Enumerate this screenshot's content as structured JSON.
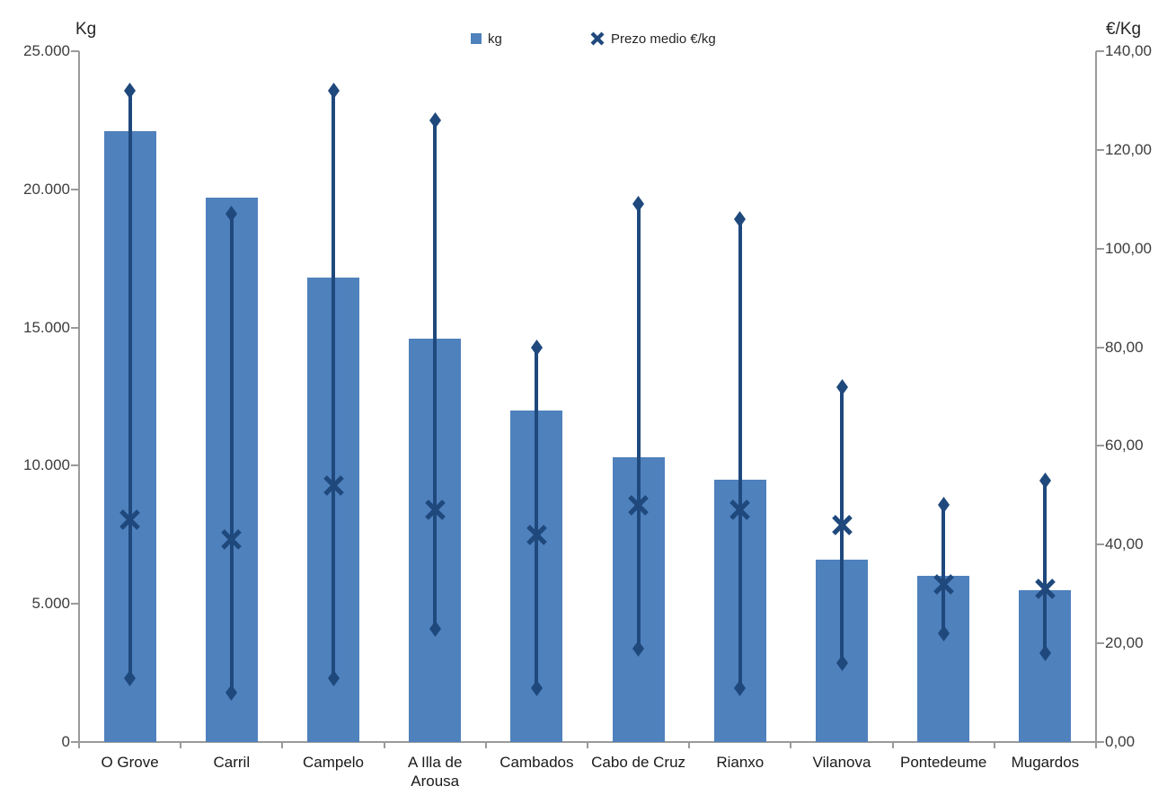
{
  "chart_data": {
    "type": "bar",
    "subtype": "combo-bar-with-price-range-and-x-markers",
    "categories": [
      "O Grove",
      "Carril",
      "Campelo",
      "A Illa de Arousa",
      "Cambados",
      "Cabo de Cruz",
      "Rianxo",
      "Vilanova",
      "Pontedeume",
      "Mugardos"
    ],
    "series": [
      {
        "name": "kg",
        "type": "bar",
        "axis": "left",
        "values": [
          22100,
          19700,
          16800,
          14600,
          12000,
          10300,
          9500,
          6600,
          6000,
          5500
        ]
      },
      {
        "name": "Prezo medio €/kg",
        "type": "x-marker",
        "axis": "right",
        "values": [
          45,
          41,
          52,
          47,
          42,
          48,
          47,
          44,
          32,
          31
        ]
      }
    ],
    "price_range": {
      "axis": "right",
      "max": [
        132,
        107,
        132,
        126,
        80,
        109,
        106,
        72,
        48,
        53
      ],
      "min": [
        13,
        10,
        13,
        23,
        11,
        19,
        11,
        16,
        22,
        18
      ]
    },
    "axis_left": {
      "title": "Kg",
      "min": 0,
      "max": 25000,
      "tick_values": [
        0,
        5000,
        10000,
        15000,
        20000,
        25000
      ],
      "tick_labels": [
        "0",
        "5.000",
        "10.000",
        "15.000",
        "20.000",
        "25.000"
      ]
    },
    "axis_right": {
      "title": "€/Kg",
      "min": 0,
      "max": 140,
      "tick_values": [
        0,
        20,
        40,
        60,
        80,
        100,
        120,
        140
      ],
      "tick_labels": [
        "0,00",
        "20,00",
        "40,00",
        "60,00",
        "80,00",
        "100,00",
        "120,00",
        "140,00"
      ]
    },
    "legend": [
      {
        "label": "kg",
        "marker": "square"
      },
      {
        "label": "Prezo medio €/kg",
        "marker": "x"
      }
    ],
    "grid": "off",
    "legend_position": "top-center",
    "colors": {
      "bar": "#4F81BD",
      "marker": "#1F497D",
      "axis": "#9a9a9a",
      "text": "#262626"
    }
  }
}
